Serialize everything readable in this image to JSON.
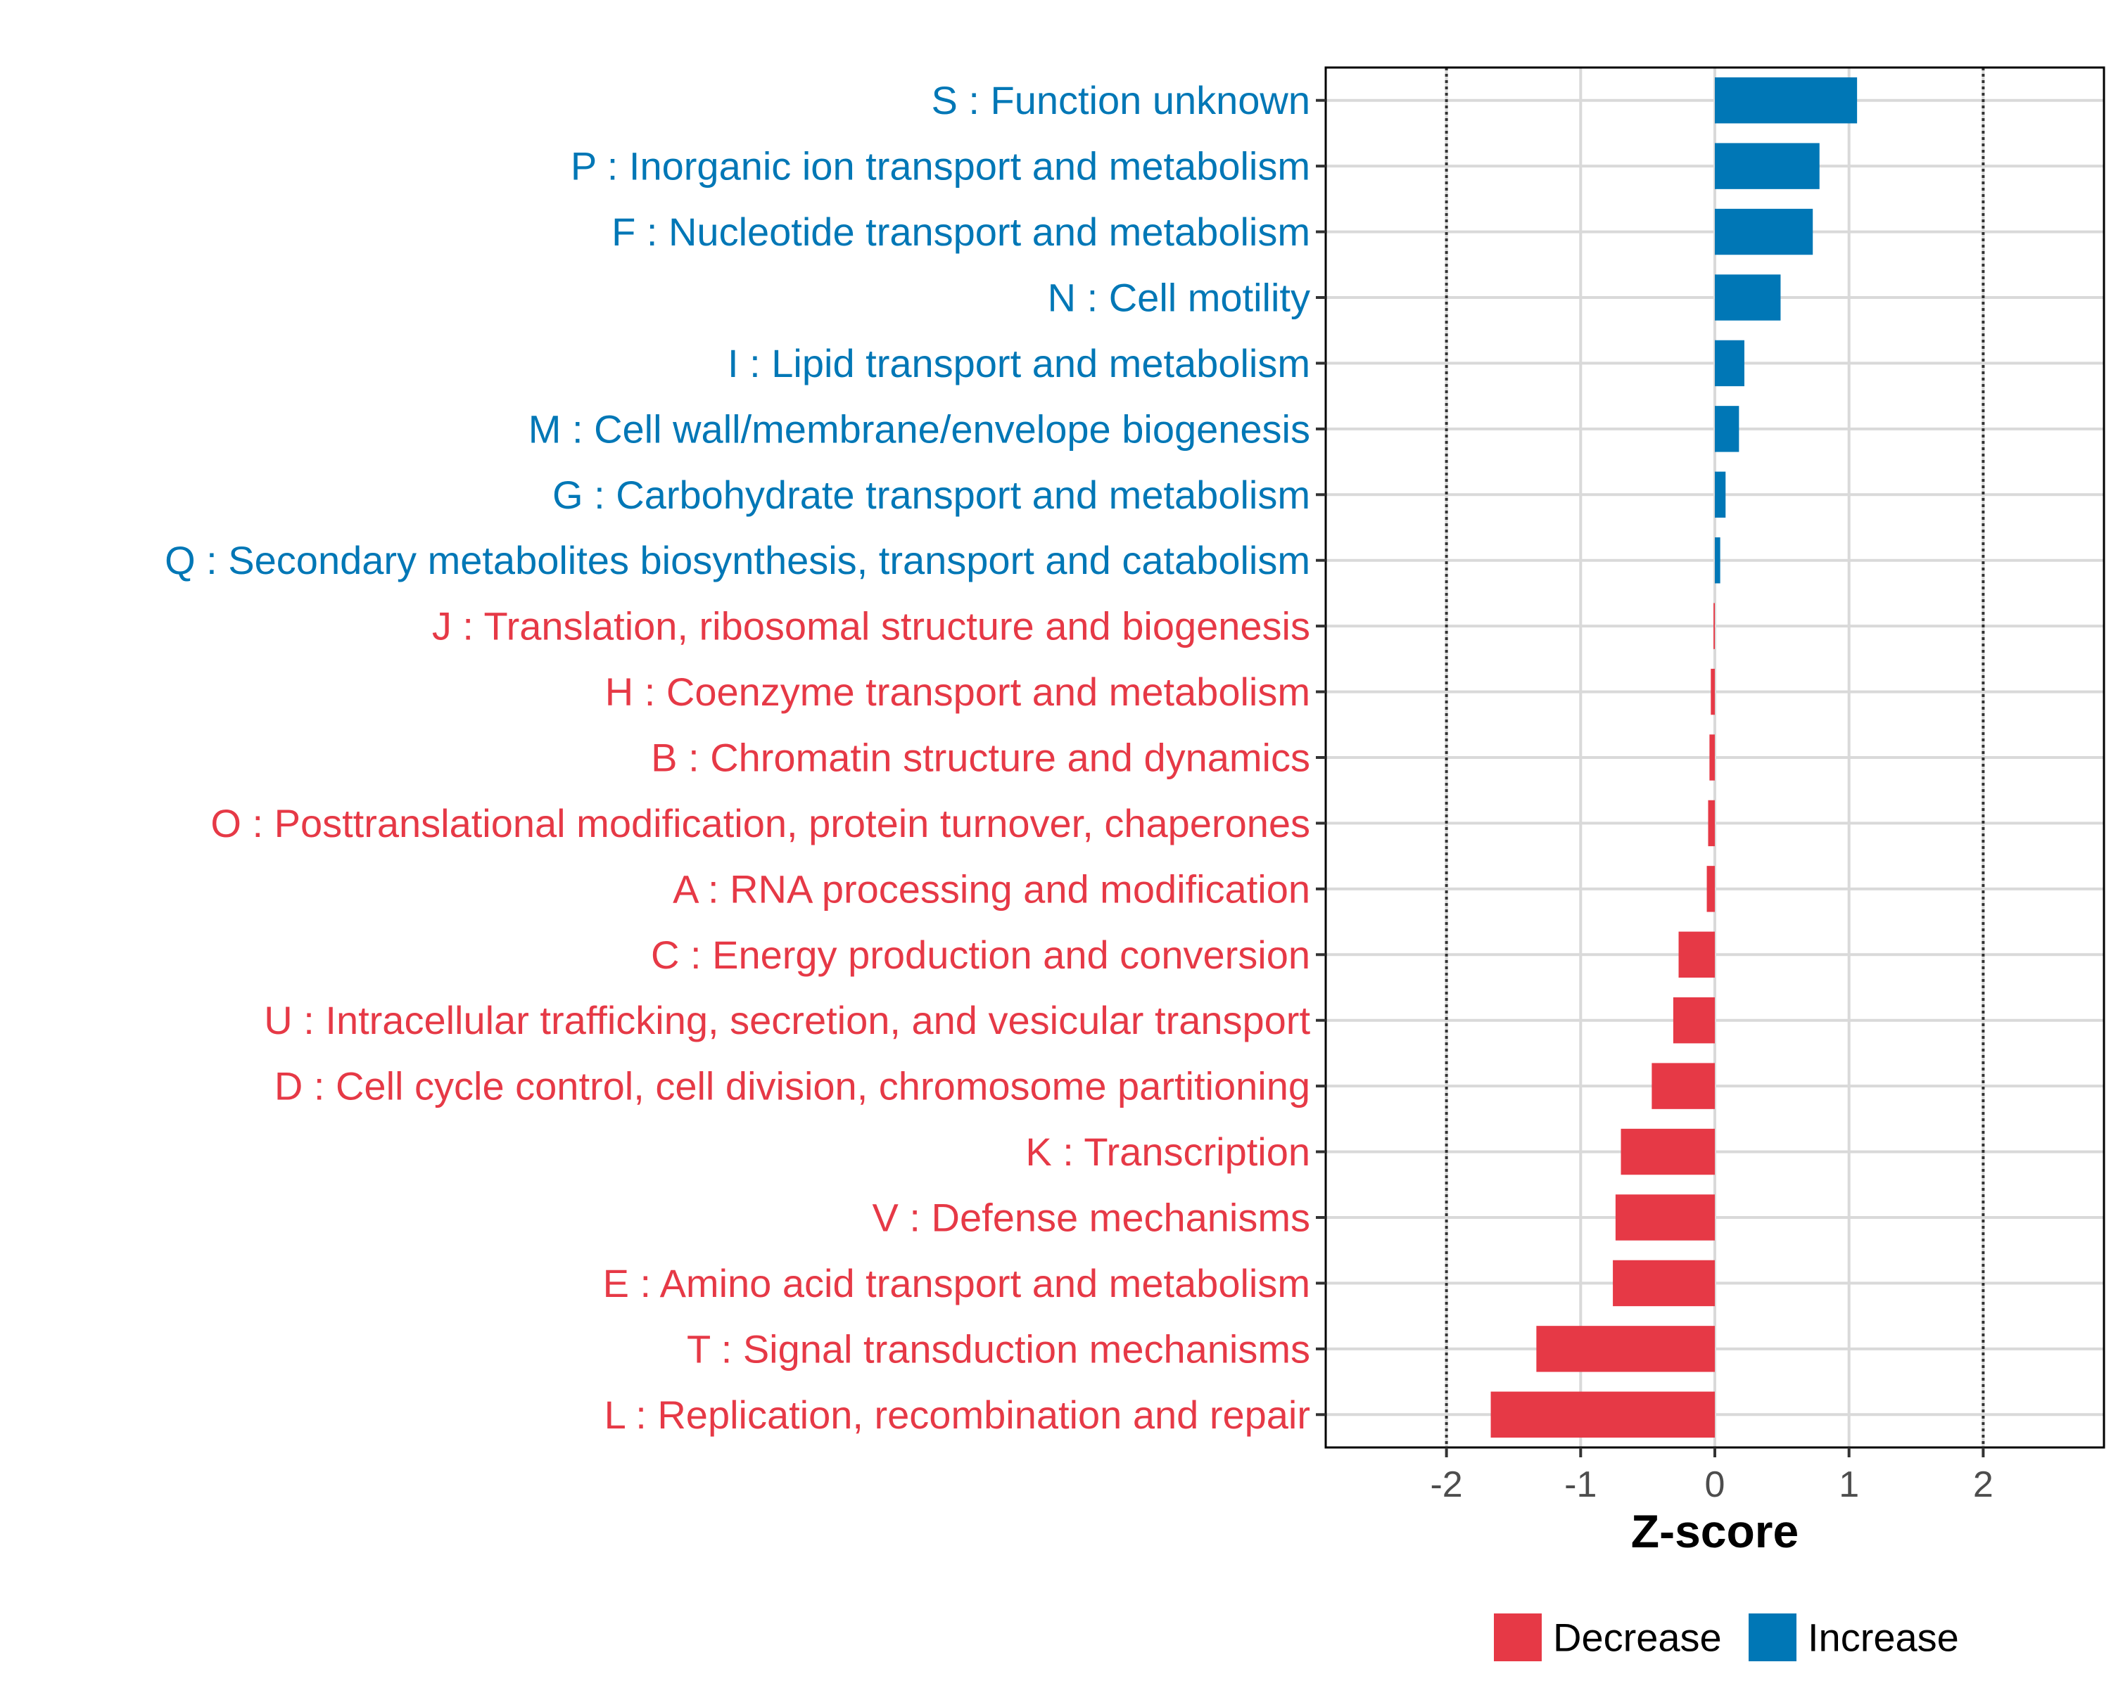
{
  "chart_data": {
    "type": "bar",
    "orientation": "horizontal",
    "title": "",
    "xlabel": "Z-score",
    "ylabel": "",
    "xlim": [
      -2.9,
      2.9
    ],
    "xticks": [
      -2,
      -1,
      0,
      1,
      2
    ],
    "xtick_labels": [
      "-2",
      "-1",
      "0",
      "1",
      "2"
    ],
    "reference_lines": [
      -2,
      2
    ],
    "grid": true,
    "legend_position": "bottom",
    "colors": {
      "Decrease": "#e63946",
      "Increase": "#0077b6"
    },
    "legend": [
      {
        "label": "Decrease",
        "color": "#e63946"
      },
      {
        "label": "Increase",
        "color": "#0077b6"
      }
    ],
    "categories": [
      "S : Function unknown",
      "P : Inorganic ion transport and metabolism",
      "F : Nucleotide transport and metabolism",
      "N : Cell motility",
      "I : Lipid transport and metabolism",
      "M : Cell wall/membrane/envelope biogenesis",
      "G : Carbohydrate transport and metabolism",
      "Q : Secondary metabolites biosynthesis, transport and catabolism",
      "J : Translation, ribosomal structure and biogenesis",
      "H : Coenzyme transport and metabolism",
      "B : Chromatin structure and dynamics",
      "O : Posttranslational modification, protein turnover, chaperones",
      "A : RNA processing and modification",
      "C : Energy production and conversion",
      "U : Intracellular trafficking, secretion, and vesicular transport",
      "D : Cell cycle control, cell division, chromosome partitioning",
      "K : Transcription",
      "V : Defense mechanisms",
      "E : Amino acid transport and metabolism",
      "T : Signal transduction mechanisms",
      "L : Replication, recombination and repair"
    ],
    "values": [
      1.06,
      0.78,
      0.73,
      0.49,
      0.22,
      0.18,
      0.08,
      0.04,
      -0.01,
      -0.03,
      -0.04,
      -0.05,
      -0.06,
      -0.27,
      -0.31,
      -0.47,
      -0.7,
      -0.74,
      -0.76,
      -1.33,
      -1.67
    ],
    "groups": [
      "Increase",
      "Increase",
      "Increase",
      "Increase",
      "Increase",
      "Increase",
      "Increase",
      "Increase",
      "Decrease",
      "Decrease",
      "Decrease",
      "Decrease",
      "Decrease",
      "Decrease",
      "Decrease",
      "Decrease",
      "Decrease",
      "Decrease",
      "Decrease",
      "Decrease",
      "Decrease"
    ]
  }
}
